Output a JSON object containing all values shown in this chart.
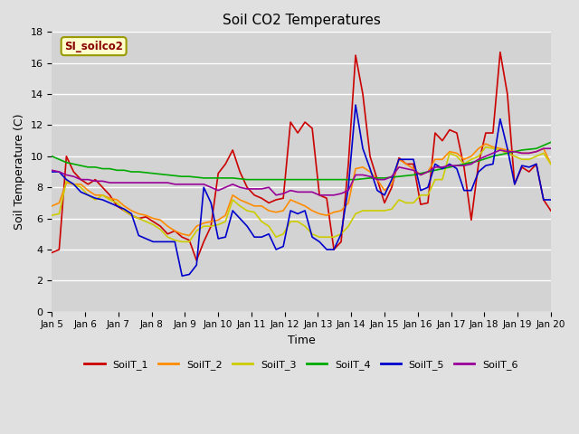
{
  "title": "Soil CO2 Temperatures",
  "xlabel": "Time",
  "ylabel": "Soil Temperature (C)",
  "ylim": [
    0,
    18
  ],
  "background_color": "#e0e0e0",
  "plot_bg_color": "#d3d3d3",
  "legend_label": "SI_soilco2",
  "series_colors": {
    "SoilT_1": "#cc0000",
    "SoilT_2": "#ff8c00",
    "SoilT_3": "#cccc00",
    "SoilT_4": "#00aa00",
    "SoilT_5": "#0000cc",
    "SoilT_6": "#990099"
  },
  "x_labels": [
    "Jan 5",
    "Jan 6",
    "Jan 7",
    "Jan 8",
    "Jan 9",
    "Jan 10",
    "Jan 11",
    "Jan 12",
    "Jan 13",
    "Jan 14",
    "Jan 15",
    "Jan 16",
    "Jan 17",
    "Jan 18",
    "Jan 19",
    "Jan 20"
  ],
  "SoilT_1": [
    3.8,
    4.0,
    10.0,
    9.0,
    8.5,
    8.2,
    8.5,
    8.0,
    7.5,
    6.8,
    6.5,
    6.2,
    6.0,
    6.1,
    5.8,
    5.5,
    5.0,
    5.2,
    4.8,
    4.6,
    3.3,
    4.5,
    5.5,
    8.9,
    9.5,
    10.4,
    9.0,
    8.0,
    7.5,
    7.3,
    7.0,
    7.2,
    7.3,
    12.2,
    11.5,
    12.2,
    11.8,
    7.5,
    7.3,
    4.0,
    4.5,
    9.5,
    16.5,
    14.0,
    10.0,
    8.5,
    7.0,
    8.0,
    9.9,
    9.5,
    9.5,
    6.9,
    7.0,
    11.5,
    11.0,
    11.7,
    11.5,
    9.3,
    5.9,
    9.5,
    11.5,
    11.5,
    16.7,
    14.0,
    8.2,
    9.3,
    9.0,
    9.5,
    7.2,
    6.5
  ],
  "SoilT_2": [
    6.8,
    7.0,
    8.3,
    8.2,
    8.2,
    7.8,
    7.5,
    7.5,
    7.3,
    7.2,
    6.8,
    6.5,
    6.3,
    6.2,
    6.0,
    5.9,
    5.5,
    5.2,
    5.0,
    4.9,
    5.5,
    5.7,
    5.8,
    5.9,
    6.2,
    7.5,
    7.2,
    7.0,
    6.8,
    6.8,
    6.5,
    6.4,
    6.5,
    7.2,
    7.0,
    6.8,
    6.5,
    6.3,
    6.2,
    6.4,
    6.5,
    7.0,
    9.2,
    9.3,
    9.0,
    8.5,
    7.8,
    8.2,
    9.8,
    9.5,
    9.2,
    8.8,
    9.0,
    9.8,
    9.8,
    10.3,
    10.2,
    9.8,
    10.0,
    10.5,
    10.8,
    10.6,
    10.5,
    10.4,
    10.3,
    10.2,
    10.2,
    10.3,
    10.5,
    9.5
  ],
  "SoilT_3": [
    6.2,
    6.3,
    8.4,
    8.2,
    8.0,
    7.5,
    7.2,
    7.5,
    7.2,
    7.0,
    6.5,
    6.2,
    6.0,
    5.8,
    5.6,
    5.3,
    4.8,
    4.6,
    4.5,
    4.5,
    5.2,
    5.5,
    5.5,
    5.6,
    5.8,
    7.2,
    6.8,
    6.5,
    6.4,
    5.8,
    5.5,
    4.8,
    5.0,
    5.8,
    5.8,
    5.5,
    5.0,
    4.8,
    4.8,
    4.8,
    5.0,
    5.5,
    6.3,
    6.5,
    6.5,
    6.5,
    6.5,
    6.6,
    7.2,
    7.0,
    7.0,
    7.5,
    7.5,
    8.5,
    8.5,
    10.2,
    10.0,
    9.5,
    9.8,
    10.0,
    10.6,
    10.5,
    10.4,
    10.2,
    10.0,
    9.8,
    9.8,
    10.0,
    10.2,
    9.5
  ],
  "SoilT_4": [
    10.0,
    9.8,
    9.6,
    9.5,
    9.4,
    9.3,
    9.3,
    9.2,
    9.2,
    9.1,
    9.1,
    9.0,
    9.0,
    8.95,
    8.9,
    8.85,
    8.8,
    8.75,
    8.7,
    8.7,
    8.65,
    8.6,
    8.6,
    8.6,
    8.6,
    8.6,
    8.55,
    8.5,
    8.5,
    8.5,
    8.5,
    8.5,
    8.5,
    8.5,
    8.5,
    8.5,
    8.5,
    8.5,
    8.5,
    8.5,
    8.5,
    8.5,
    8.5,
    8.55,
    8.6,
    8.6,
    8.6,
    8.65,
    8.7,
    8.75,
    8.8,
    8.9,
    9.0,
    9.1,
    9.2,
    9.3,
    9.4,
    9.5,
    9.6,
    9.7,
    9.85,
    10.0,
    10.1,
    10.2,
    10.3,
    10.4,
    10.45,
    10.5,
    10.7,
    10.9
  ],
  "SoilT_5": [
    9.0,
    9.0,
    8.5,
    8.2,
    7.7,
    7.5,
    7.3,
    7.2,
    7.0,
    6.8,
    6.6,
    6.3,
    4.9,
    4.7,
    4.5,
    4.5,
    4.5,
    4.5,
    2.3,
    2.4,
    3.0,
    8.0,
    7.0,
    4.7,
    4.8,
    6.5,
    6.0,
    5.5,
    4.8,
    4.8,
    5.0,
    4.0,
    4.2,
    6.5,
    6.3,
    6.5,
    4.8,
    4.5,
    4.0,
    4.0,
    5.0,
    8.0,
    13.3,
    10.5,
    9.2,
    7.8,
    7.5,
    8.5,
    9.8,
    9.8,
    9.8,
    7.8,
    8.0,
    9.5,
    9.2,
    9.5,
    9.2,
    7.8,
    7.8,
    9.0,
    9.4,
    9.5,
    12.4,
    10.5,
    8.2,
    9.4,
    9.3,
    9.5,
    7.2,
    7.2
  ],
  "SoilT_6": [
    9.1,
    9.0,
    8.8,
    8.7,
    8.5,
    8.5,
    8.4,
    8.4,
    8.3,
    8.3,
    8.3,
    8.3,
    8.3,
    8.3,
    8.3,
    8.3,
    8.3,
    8.2,
    8.2,
    8.2,
    8.2,
    8.2,
    8.0,
    7.8,
    8.0,
    8.2,
    8.0,
    7.9,
    7.9,
    7.9,
    8.0,
    7.5,
    7.6,
    7.8,
    7.7,
    7.7,
    7.7,
    7.5,
    7.5,
    7.5,
    7.6,
    7.8,
    8.8,
    8.8,
    8.7,
    8.5,
    8.5,
    8.7,
    9.3,
    9.2,
    9.1,
    8.8,
    9.0,
    9.3,
    9.3,
    9.4,
    9.4,
    9.4,
    9.5,
    9.8,
    10.0,
    10.2,
    10.4,
    10.3,
    10.3,
    10.2,
    10.2,
    10.3,
    10.5,
    10.5
  ]
}
